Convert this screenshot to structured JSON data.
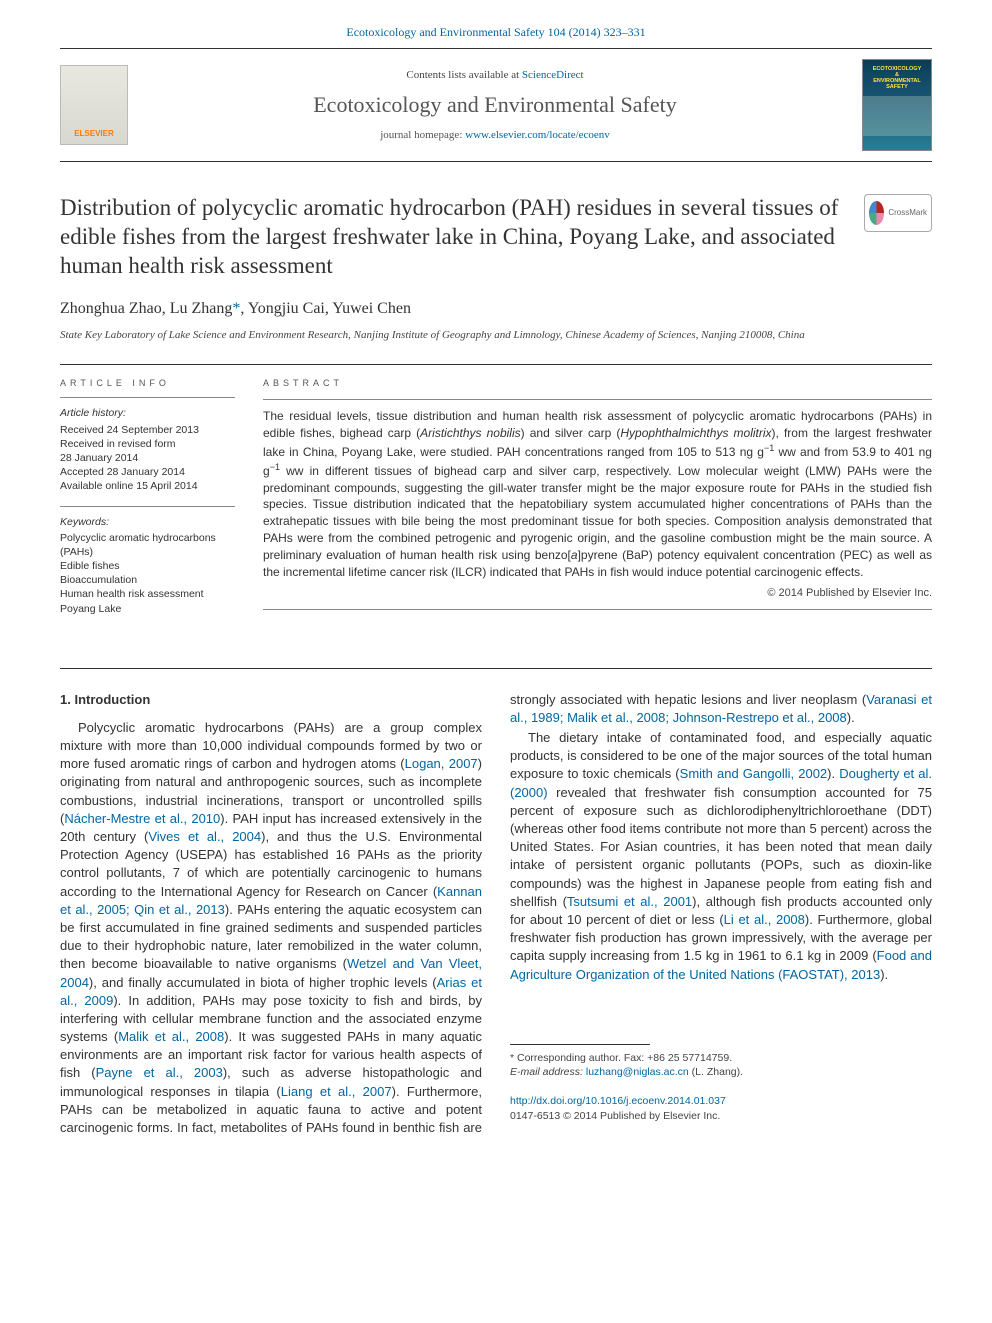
{
  "top_meta": {
    "citation": "Ecotoxicology and Environmental Safety 104 (2014) 323–331",
    "link_color": "#0066a1"
  },
  "masthead": {
    "contents_prefix": "Contents lists available at ",
    "contents_link": "ScienceDirect",
    "journal_name": "Ecotoxicology and Environmental Safety",
    "journal_name_color": "#555555",
    "journal_name_fontsize": 22,
    "homepage_prefix": "journal homepage: ",
    "homepage_url": "www.elsevier.com/locate/ecoenv",
    "elsevier_label": "ELSEVIER",
    "cover_line1": "ECOTOXICOLOGY",
    "cover_line2": "ENVIRONMENTAL",
    "cover_line3": "SAFETY"
  },
  "title": {
    "text": "Distribution of polycyclic aromatic hydrocarbon (PAH) residues in several tissues of edible fishes from the largest freshwater lake in China, Poyang Lake, and associated human health risk assessment",
    "fontsize": 23,
    "color": "#333333"
  },
  "crossmark": {
    "label": "CrossMark"
  },
  "authors": {
    "line": "Zhonghua Zhao, Lu Zhang",
    "corr_marker": "*",
    "rest": ", Yongjiu Cai, Yuwei Chen",
    "fontsize": 16
  },
  "affiliation": "State Key Laboratory of Lake Science and Environment Research, Nanjing Institute of Geography and Limnology, Chinese Academy of Sciences, Nanjing 210008, China",
  "article_info": {
    "head": "ARTICLE INFO",
    "history_label": "Article history:",
    "history": [
      "Received 24 September 2013",
      "Received in revised form",
      "28 January 2014",
      "Accepted 28 January 2014",
      "Available online 15 April 2014"
    ],
    "keywords_label": "Keywords:",
    "keywords": [
      "Polycyclic aromatic hydrocarbons (PAHs)",
      "Edible fishes",
      "Bioaccumulation",
      "Human health risk assessment",
      "Poyang Lake"
    ]
  },
  "abstract": {
    "head": "ABSTRACT",
    "body_html": "The residual levels, tissue distribution and human health risk assessment of polycyclic aromatic hydrocarbons (PAHs) in edible fishes, bighead carp (<i>Aristichthys nobilis</i>) and silver carp (<i>Hypophthalmichthys molitrix</i>), from the largest freshwater lake in China, Poyang Lake, were studied. PAH concentrations ranged from 105 to 513 ng g<sup>−1</sup> ww and from 53.9 to 401 ng g<sup>−1</sup> ww in different tissues of bighead carp and silver carp, respectively. Low molecular weight (LMW) PAHs were the predominant compounds, suggesting the gill-water transfer might be the major exposure route for PAHs in the studied fish species. Tissue distribution indicated that the hepatobiliary system accumulated higher concentrations of PAHs than the extrahepatic tissues with bile being the most predominant tissue for both species. Composition analysis demonstrated that PAHs were from the combined petrogenic and pyrogenic origin, and the gasoline combustion might be the main source. A preliminary evaluation of human health risk using benzo[<i>a</i>]pyrene (BaP) potency equivalent concentration (PEC) as well as the incremental lifetime cancer risk (ILCR) indicated that PAHs in fish would induce potential carcinogenic effects.",
    "copyright": "© 2014 Published by Elsevier Inc."
  },
  "section1": {
    "head": "1.  Introduction",
    "paragraphs": [
      "Polycyclic aromatic hydrocarbons (PAHs) are a group complex mixture with more than 10,000 individual compounds formed by two or more fused aromatic rings of carbon and hydrogen atoms (<span class='ref'>Logan, 2007</span>) originating from natural and anthropogenic sources, such as incomplete combustions, industrial incinerations, transport or uncontrolled spills (<span class='ref'>Nácher-Mestre et al., 2010</span>). PAH input has increased extensively in the 20th century (<span class='ref'>Vives et al., 2004</span>), and thus the U.S. Environmental Protection Agency (USEPA) has established 16 PAHs as the priority control pollutants, 7 of which are potentially carcinogenic to humans according to the International Agency for Research on Cancer (<span class='ref'>Kannan et al., 2005; Qin et al., 2013</span>). PAHs entering the aquatic ecosystem can be first accumulated in fine grained sediments and suspended particles due to their hydrophobic nature, later remobilized in the water column, then become bioavailable to native organisms (<span class='ref'>Wetzel and Van Vleet, 2004</span>), and finally accumulated in biota of higher trophic levels (<span class='ref'>Arias et al., 2009</span>). In addition, PAHs may pose toxicity to fish and birds, by interfering with cellular membrane function and the associated enzyme systems (<span class='ref'>Malik et al., 2008</span>). It was suggested PAHs in many aquatic environments are an important risk factor for various health aspects of fish (<span class='ref'>Payne et al., 2003</span>), such as adverse histopathologic and immunological responses in tilapia (<span class='ref'>Liang et al., 2007</span>). Furthermore, PAHs can be metabolized in aquatic fauna to active and potent carcinogenic forms. In fact, metabolites of PAHs found in benthic fish are strongly associated with hepatic lesions and liver neoplasm (<span class='ref'>Varanasi et al., 1989; Malik et al., 2008; Johnson-Restrepo et al., 2008</span>).",
      "The dietary intake of contaminated food, and especially aquatic products, is considered to be one of the major sources of the total human exposure to toxic chemicals (<span class='ref'>Smith and Gangolli, 2002</span>). <span class='ref'>Dougherty et al. (2000)</span> revealed that freshwater fish consumption accounted for 75 percent of exposure such as dichlorodiphenyltrichloroethane (DDT) (whereas other food items contribute not more than 5 percent) across the United States. For Asian countries, it has been noted that mean daily intake of persistent organic pollutants (POPs, such as dioxin-like compounds) was the highest in Japanese people from eating fish and shellfish (<span class='ref'>Tsutsumi et al., 2001</span>), although fish products accounted only for about 10 percent of diet or less (<span class='ref'>Li et al., 2008</span>). Furthermore, global freshwater fish production has grown impressively, with the average per capita supply increasing from 1.5 kg in 1961 to 6.1 kg in 2009 (<span class='ref'>Food and Agriculture Organization of the United Nations (FAOSTAT), 2013</span>)."
    ]
  },
  "footnotes": {
    "corr_label": "* Corresponding author. Fax: +86 25 57714759.",
    "email_label": "E-mail address:",
    "email": "luzhang@niglas.ac.cn",
    "email_suffix": " (L. Zhang)."
  },
  "doi": {
    "url": "http://dx.doi.org/10.1016/j.ecoenv.2014.01.037",
    "issn_line": "0147-6513 © 2014 Published by Elsevier Inc."
  },
  "colors": {
    "link": "#0066a1",
    "text": "#333333",
    "rule": "#333333",
    "bg": "#ffffff"
  }
}
